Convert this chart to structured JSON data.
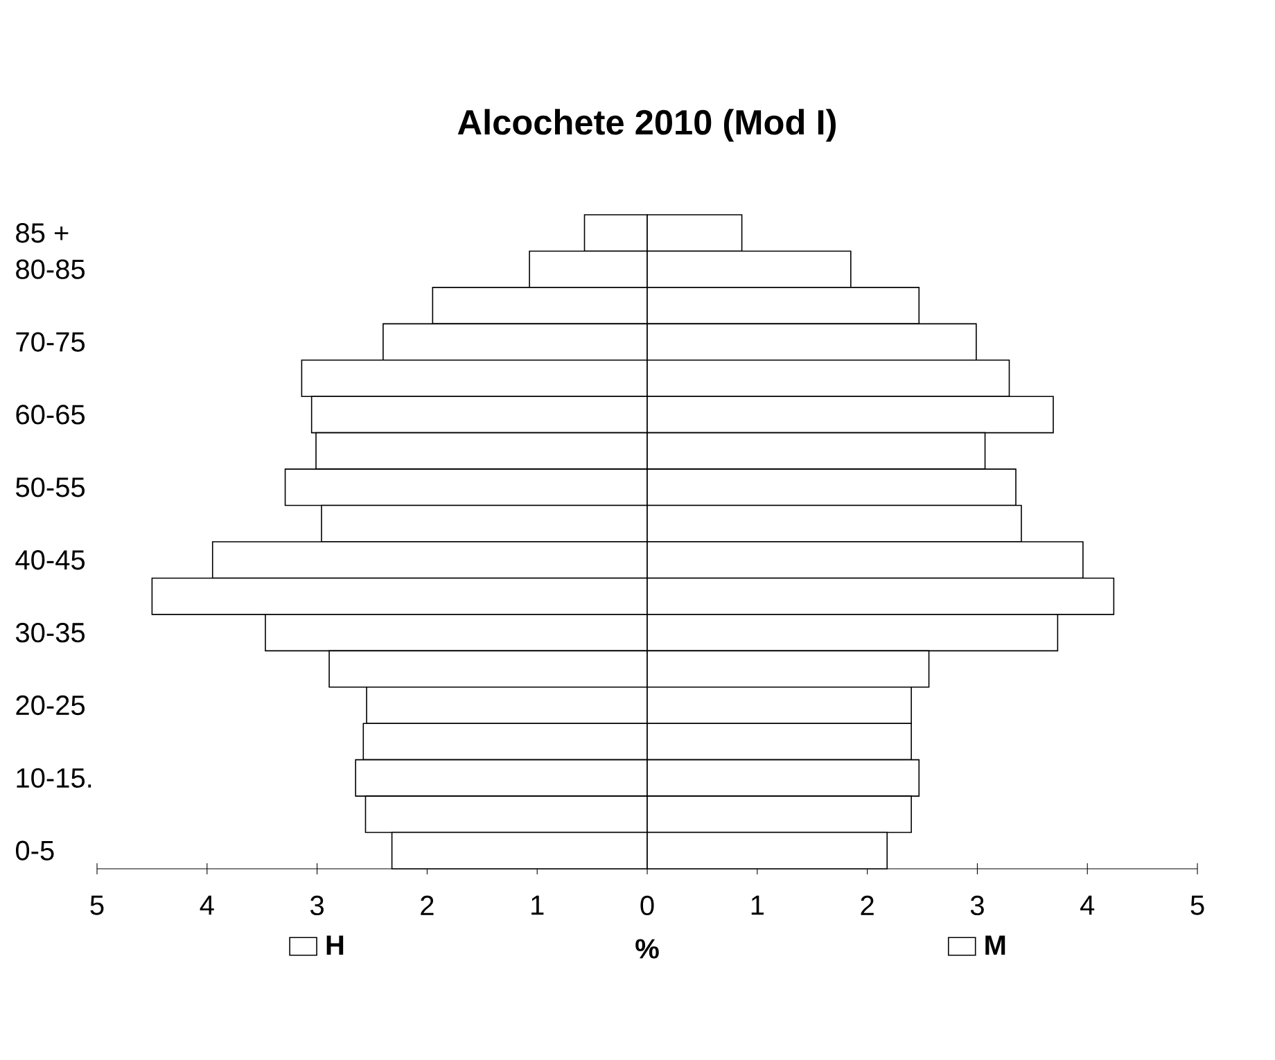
{
  "chart_data": {
    "type": "bar",
    "orientation": "horizontal",
    "title": "Alcochete  2010  (Mod I)",
    "xlabel": "%",
    "categories": [
      "85 +",
      "80-85",
      null,
      "70-75",
      null,
      "60-65",
      null,
      "50-55",
      null,
      "40-45",
      null,
      "30-35",
      null,
      "20-25",
      null,
      "10-15.",
      null,
      "0-5"
    ],
    "series": [
      {
        "name": "H",
        "color": "#ffffff",
        "values": [
          -0.57,
          -1.07,
          -1.95,
          -2.4,
          -3.14,
          -3.05,
          -3.01,
          -3.29,
          -2.96,
          -3.95,
          -4.5,
          -3.47,
          -2.89,
          -2.55,
          -2.58,
          -2.65,
          -2.56,
          -2.32
        ]
      },
      {
        "name": "M",
        "color": "#ffffff",
        "values": [
          0.86,
          1.85,
          2.47,
          2.99,
          3.29,
          3.69,
          3.07,
          3.35,
          3.4,
          3.96,
          4.24,
          3.73,
          2.56,
          2.4,
          2.4,
          2.47,
          2.4,
          2.18
        ]
      }
    ],
    "xlim": [
      -5,
      5
    ],
    "xticks": [
      {
        "value": -5,
        "label": "5"
      },
      {
        "value": -4,
        "label": "4"
      },
      {
        "value": -3,
        "label": "3"
      },
      {
        "value": -2,
        "label": "2"
      },
      {
        "value": -1,
        "label": "1"
      },
      0,
      1,
      2,
      3,
      4,
      5
    ],
    "stacked": true,
    "legend": "bottom"
  }
}
